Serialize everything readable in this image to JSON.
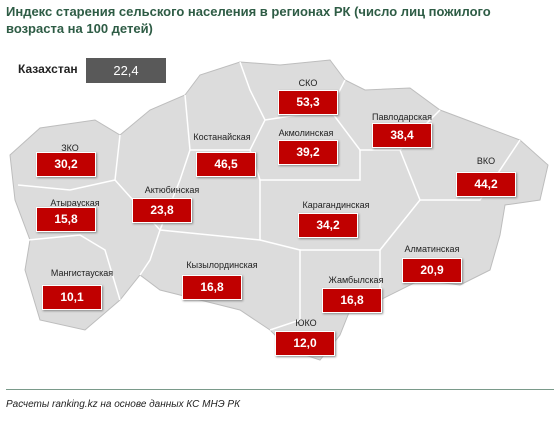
{
  "header": {
    "title": "Индекс старения сельского населения в регионах РК (число лиц пожилого возраста на 100 детей)"
  },
  "national": {
    "label": "Казахстан",
    "value": "22,4"
  },
  "regions": [
    {
      "name": "ЗКО",
      "value": "30,2"
    },
    {
      "name": "Атырауская",
      "value": "15,8"
    },
    {
      "name": "Актюбинская",
      "value": "23,8"
    },
    {
      "name": "Мангистауская",
      "value": "10,1"
    },
    {
      "name": "Костанайская",
      "value": "46,5"
    },
    {
      "name": "СКО",
      "value": "53,3"
    },
    {
      "name": "Акмолинская",
      "value": "39,2"
    },
    {
      "name": "Павлодарская",
      "value": "38,4"
    },
    {
      "name": "ВКО",
      "value": "44,2"
    },
    {
      "name": "Карагандинская",
      "value": "34,2"
    },
    {
      "name": "Кызылординская",
      "value": "16,8"
    },
    {
      "name": "Жамбылская",
      "value": "16,8"
    },
    {
      "name": "Алматинская",
      "value": "20,9"
    },
    {
      "name": "ЮКО",
      "value": "12,0"
    }
  ],
  "footer": {
    "source": "Расчеты ranking.kz на основе данных КС МНЭ РК"
  }
}
